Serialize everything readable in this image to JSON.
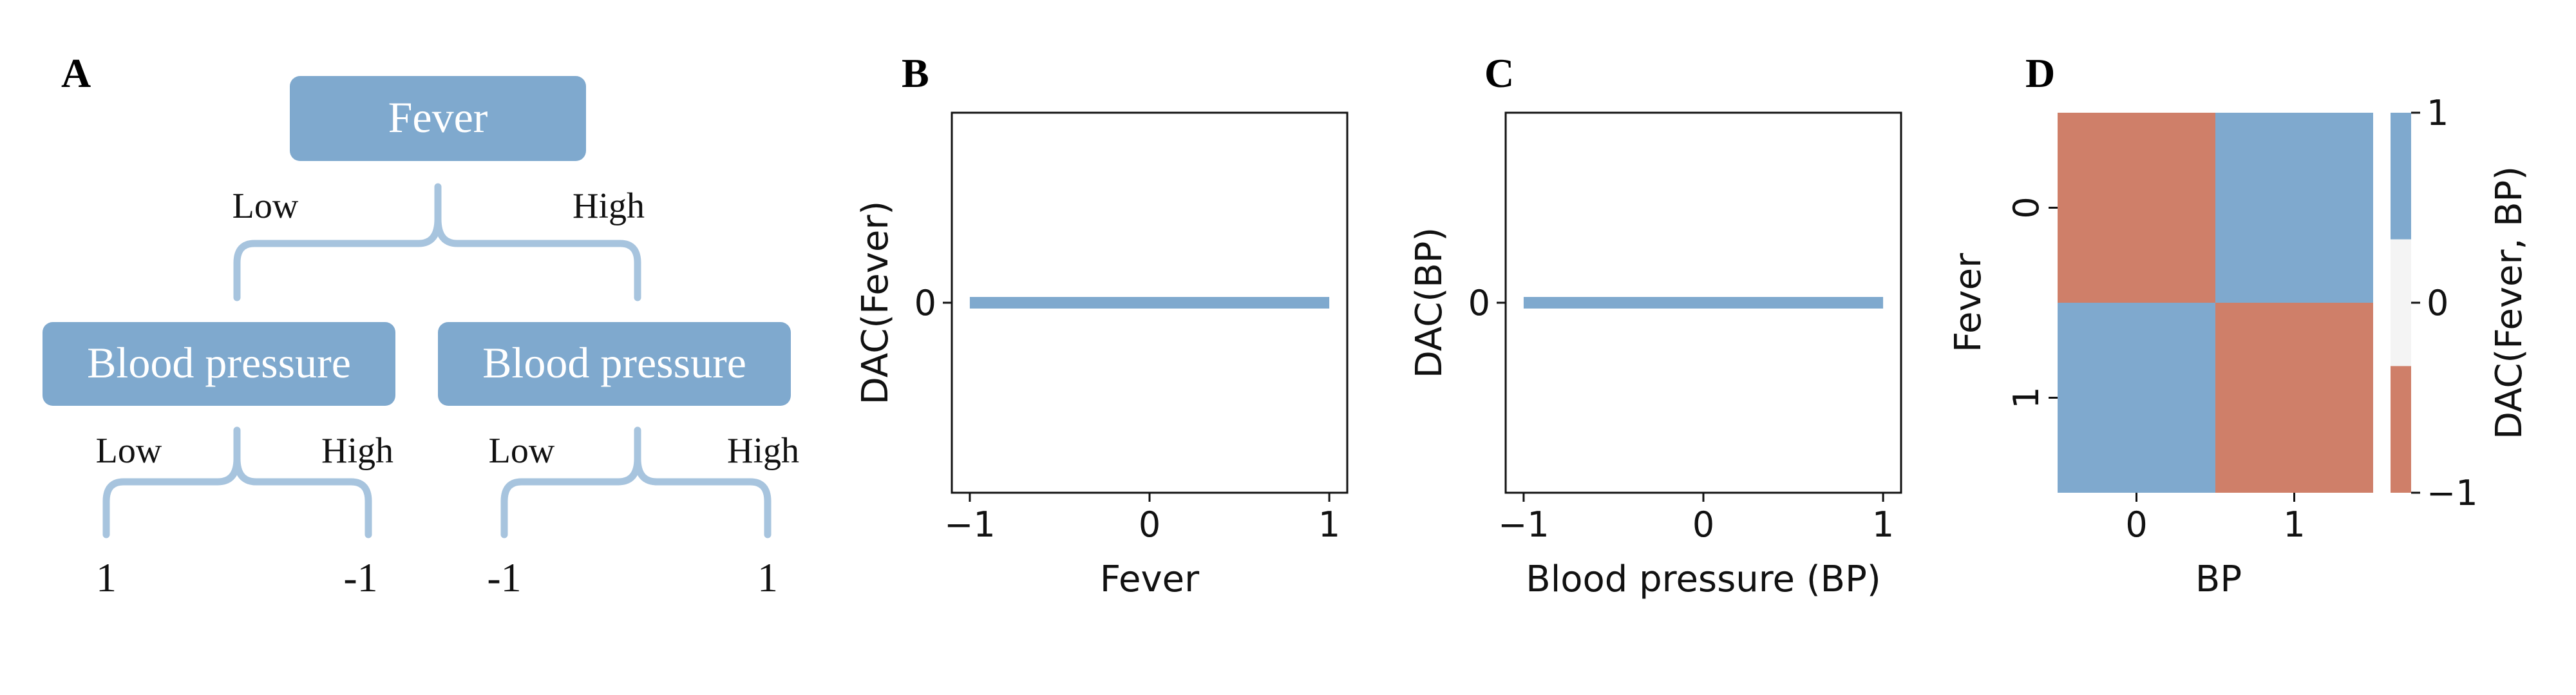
{
  "panels": {
    "a": "A",
    "b": "B",
    "c": "C",
    "d": "D"
  },
  "tree": {
    "root": "Fever",
    "branch_low": "Low",
    "branch_high": "High",
    "child_left": "Blood pressure",
    "child_right": "Blood pressure",
    "left_low": "Low",
    "left_high": "High",
    "right_low": "Low",
    "right_high": "High",
    "leaf_values": [
      "1",
      "-1",
      "-1",
      "1"
    ]
  },
  "colors": {
    "blue": "#7fa9ce",
    "light_blue": "#a7c4de",
    "orange": "#cf7f69",
    "mid": "#f4f4f4"
  },
  "chart_data": [
    {
      "type": "line",
      "panel": "B",
      "xlabel": "Fever",
      "ylabel": "DAC(Fever)",
      "x": [
        -1,
        1
      ],
      "y": [
        0,
        0
      ],
      "xticks": [
        "−1",
        "0",
        "1"
      ],
      "yticks": [
        "0"
      ],
      "xlim": [
        -1.1,
        1.1
      ],
      "ylim": [
        -1,
        1
      ]
    },
    {
      "type": "line",
      "panel": "C",
      "xlabel": "Blood pressure (BP)",
      "ylabel": "DAC(BP)",
      "x": [
        -1,
        1
      ],
      "y": [
        0,
        0
      ],
      "xticks": [
        "−1",
        "0",
        "1"
      ],
      "yticks": [
        "0"
      ],
      "xlim": [
        -1.1,
        1.1
      ],
      "ylim": [
        -1,
        1
      ]
    },
    {
      "type": "heatmap",
      "panel": "D",
      "xlabel": "BP",
      "ylabel": "Fever",
      "x_categories": [
        "0",
        "1"
      ],
      "y_categories": [
        "0",
        "1"
      ],
      "values": [
        [
          -1,
          1
        ],
        [
          1,
          -1
        ]
      ],
      "colorbar_label": "DAC(Fever, BP)",
      "colorbar_ticks": [
        "1",
        "0",
        "−1"
      ],
      "vmin": -1,
      "vmax": 1
    }
  ]
}
